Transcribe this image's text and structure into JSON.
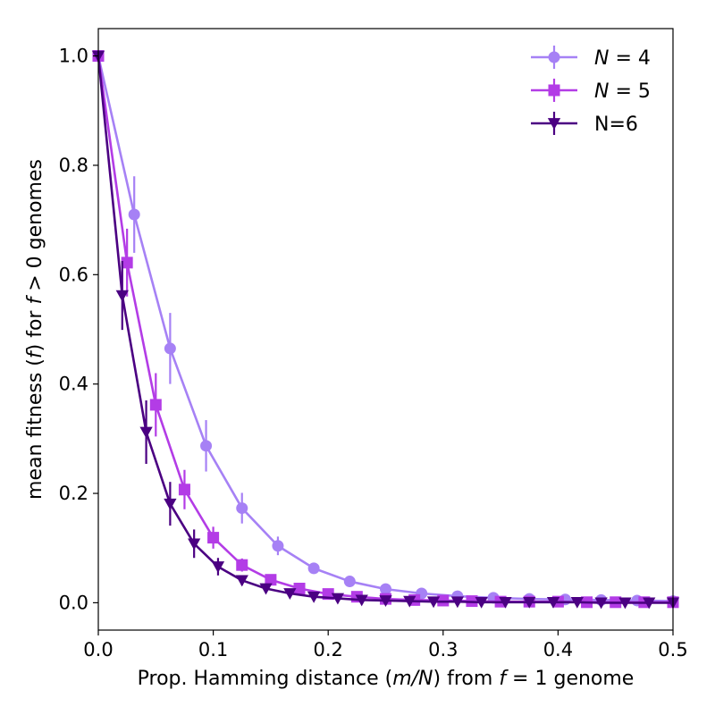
{
  "chart_data": {
    "type": "line",
    "xlabel_parts": [
      "Prop. Hamming distance (",
      "m/N",
      ") from ",
      "f",
      " = 1 genome"
    ],
    "ylabel_parts": [
      "mean fitness (",
      "f",
      ") for ",
      "f",
      " > 0 genomes"
    ],
    "xlim": [
      0,
      0.5
    ],
    "ylim": [
      -0.05,
      1.05
    ],
    "x_ticks": [
      0.0,
      0.1,
      0.2,
      0.3,
      0.4,
      0.5
    ],
    "x_tick_labels": [
      "0.0",
      "0.1",
      "0.2",
      "0.3",
      "0.4",
      "0.5"
    ],
    "y_ticks": [
      0.0,
      0.2,
      0.4,
      0.6,
      0.8,
      1.0
    ],
    "y_tick_labels": [
      "0.0",
      "0.2",
      "0.4",
      "0.6",
      "0.8",
      "1.0"
    ],
    "grid": false,
    "legend_position": "top-right",
    "series": [
      {
        "name": "N = 4",
        "name_parts": [
          "N",
          " = 4"
        ],
        "color": "#a681f5",
        "marker": "circle",
        "x": [
          0.0,
          0.03125,
          0.0625,
          0.09375,
          0.125,
          0.15625,
          0.1875,
          0.21875,
          0.25,
          0.28125,
          0.3125,
          0.34375,
          0.375,
          0.40625,
          0.4375,
          0.46875,
          0.5
        ],
        "y": [
          1.0,
          0.71,
          0.465,
          0.287,
          0.173,
          0.104,
          0.063,
          0.039,
          0.025,
          0.017,
          0.012,
          0.009,
          0.007,
          0.006,
          0.005,
          0.004,
          0.003
        ],
        "err": [
          0.0,
          0.07,
          0.065,
          0.047,
          0.028,
          0.017,
          0.008,
          0.006,
          0.004,
          0.003,
          0.002,
          0.002,
          0.002,
          0.001,
          0.001,
          0.001,
          0.001
        ]
      },
      {
        "name": "N = 5",
        "name_parts": [
          "N",
          " = 5"
        ],
        "color": "#b33ce6",
        "marker": "square",
        "x": [
          0.0,
          0.025,
          0.05,
          0.075,
          0.1,
          0.125,
          0.15,
          0.175,
          0.2,
          0.225,
          0.25,
          0.275,
          0.3,
          0.325,
          0.35,
          0.375,
          0.4,
          0.425,
          0.45,
          0.475,
          0.5
        ],
        "y": [
          1.0,
          0.622,
          0.362,
          0.207,
          0.119,
          0.069,
          0.042,
          0.026,
          0.016,
          0.011,
          0.007,
          0.005,
          0.004,
          0.003,
          0.002,
          0.002,
          0.002,
          0.001,
          0.001,
          0.001,
          0.001
        ],
        "err": [
          0.0,
          0.062,
          0.058,
          0.036,
          0.02,
          0.012,
          0.007,
          0.004,
          0.003,
          0.002,
          0.001,
          0.001,
          0.001,
          0.001,
          0.001,
          0.0,
          0.0,
          0.0,
          0.0,
          0.0,
          0.0
        ]
      },
      {
        "name": "N=6",
        "name_parts": [
          "N=6"
        ],
        "color": "#4b0082",
        "marker": "triangle-down",
        "x": [
          0.0,
          0.02083,
          0.04167,
          0.0625,
          0.08333,
          0.10417,
          0.125,
          0.14583,
          0.16667,
          0.1875,
          0.20833,
          0.22917,
          0.25,
          0.27083,
          0.29167,
          0.3125,
          0.33333,
          0.35417,
          0.375,
          0.39583,
          0.41667,
          0.4375,
          0.45833,
          0.47917,
          0.5
        ],
        "y": [
          1.0,
          0.562,
          0.312,
          0.181,
          0.108,
          0.066,
          0.041,
          0.026,
          0.017,
          0.011,
          0.008,
          0.005,
          0.004,
          0.003,
          0.002,
          0.002,
          0.001,
          0.001,
          0.001,
          0.001,
          0.001,
          0.0,
          0.0,
          0.0,
          0.0
        ],
        "err": [
          0.0,
          0.063,
          0.058,
          0.04,
          0.026,
          0.016,
          0.009,
          0.005,
          0.003,
          0.002,
          0.001,
          0.001,
          0.001,
          0.0,
          0.0,
          0.0,
          0.0,
          0.0,
          0.0,
          0.0,
          0.0,
          0.0,
          0.0,
          0.0,
          0.0
        ]
      }
    ]
  }
}
